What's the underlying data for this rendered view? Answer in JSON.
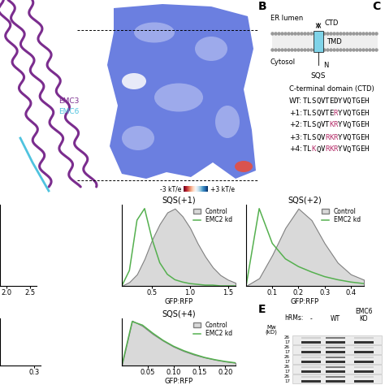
{
  "panel_A": {
    "labels": [
      {
        "text": "EMC3",
        "color": "#7b2d8e"
      },
      {
        "text": "EMC6",
        "color": "#4fc3df"
      }
    ],
    "color_scale": {
      "low": "-3 kT/e",
      "high": "+3 kT/e"
    }
  },
  "panel_B": {
    "letter": "B",
    "lumen": "ER lumen",
    "cytosol": "Cytosol",
    "ctd": "CTD",
    "tmd": "TMD",
    "n_term": "N",
    "protein": "SQS",
    "table_title": "C-terminal domain (CTD)",
    "sequences": [
      {
        "name": "WT:",
        "segments": [
          {
            "text": "TLSQVTEDYVQTGEH",
            "color": "#000000"
          }
        ]
      },
      {
        "name": "+1:",
        "segments": [
          {
            "text": "TLSQVTE",
            "color": "#000000"
          },
          {
            "text": "R",
            "color": "#b5306b"
          },
          {
            "text": "YVQTGEH",
            "color": "#000000"
          }
        ]
      },
      {
        "name": "+2:",
        "segments": [
          {
            "text": "TLSQVT",
            "color": "#000000"
          },
          {
            "text": "KR",
            "color": "#b5306b"
          },
          {
            "text": "YVQTGEH",
            "color": "#000000"
          }
        ]
      },
      {
        "name": "+3:",
        "segments": [
          {
            "text": "TLSQV",
            "color": "#000000"
          },
          {
            "text": "RKR",
            "color": "#b5306b"
          },
          {
            "text": "YVQTGEH",
            "color": "#000000"
          }
        ]
      },
      {
        "name": "+4:",
        "segments": [
          {
            "text": "TL",
            "color": "#000000"
          },
          {
            "text": "K",
            "color": "#b5306b"
          },
          {
            "text": "QV",
            "color": "#000000"
          },
          {
            "text": "RKR",
            "color": "#b5306b"
          },
          {
            "text": "YVQTGEH",
            "color": "#000000"
          }
        ]
      }
    ]
  },
  "panel_C": {
    "letter": "C"
  },
  "chart_data": [
    {
      "type": "line",
      "xlim": [
        1.86,
        2.64
      ],
      "xticks": [
        {
          "value": 2.0,
          "label": "2.0"
        },
        {
          "value": 2.5,
          "label": "2.5"
        }
      ],
      "ylim": [
        0,
        105
      ],
      "tick_labels": "x",
      "x": [],
      "series": []
    },
    {
      "type": "line",
      "title": "SQS(+1)",
      "x_label": "GFP:RFP",
      "xlim": [
        0.1,
        1.6
      ],
      "xticks": [
        0.5,
        {
          "value": 1.0,
          "label": "1.0"
        },
        1.5
      ],
      "ylim": [
        0,
        105
      ],
      "tick_labels": "x",
      "legend": "upper right",
      "x": [
        0.1,
        0.2,
        0.3,
        0.4,
        0.5,
        0.6,
        0.7,
        0.8,
        0.9,
        1.0,
        1.1,
        1.2,
        1.3,
        1.4,
        1.5,
        1.6
      ],
      "series": [
        {
          "name": "Control",
          "type": "area",
          "color": "#d9d9d9",
          "values": [
            0,
            5,
            15,
            35,
            60,
            80,
            95,
            100,
            90,
            75,
            55,
            38,
            24,
            14,
            8,
            4
          ]
        },
        {
          "name": "EMC2 kd",
          "type": "line",
          "color": "#55b04f",
          "values": [
            0,
            20,
            85,
            100,
            60,
            30,
            15,
            8,
            5,
            3,
            2,
            1,
            1,
            0,
            0,
            0
          ]
        }
      ]
    },
    {
      "type": "line",
      "title": "SQS(+2)",
      "x_label": "GFP:RFP",
      "xlim": [
        0.0,
        0.45
      ],
      "xticks": [
        0.1,
        0.2,
        0.3,
        0.4
      ],
      "ylim": [
        0,
        105
      ],
      "tick_labels": "x",
      "legend": "upper right",
      "x": [
        0.0,
        0.05,
        0.1,
        0.15,
        0.2,
        0.25,
        0.3,
        0.35,
        0.4,
        0.45
      ],
      "series": [
        {
          "name": "Control",
          "type": "area",
          "color": "#d9d9d9",
          "values": [
            0,
            10,
            40,
            75,
            100,
            85,
            55,
            30,
            15,
            8
          ]
        },
        {
          "name": "EMC2 kd",
          "type": "line",
          "color": "#55b04f",
          "values": [
            0,
            100,
            55,
            35,
            25,
            18,
            12,
            8,
            5,
            3
          ]
        }
      ]
    },
    {
      "type": "line",
      "xlim": [
        0.0,
        0.36
      ],
      "xticks": [
        0.3
      ],
      "ylim": [
        0,
        105
      ],
      "tick_labels": "x",
      "x": [],
      "series": []
    },
    {
      "type": "line",
      "title": "SQS(+4)",
      "x_label": "GFP:RFP",
      "xlim": [
        0.0,
        0.22
      ],
      "xticks": [
        0.05,
        {
          "value": 0.1,
          "label": "0.10"
        },
        0.15,
        {
          "value": 0.2,
          "label": "0.20"
        }
      ],
      "ylim": [
        0,
        105
      ],
      "tick_labels": "x",
      "legend": "upper right",
      "x": [
        0.0,
        0.02,
        0.04,
        0.06,
        0.08,
        0.1,
        0.12,
        0.14,
        0.16,
        0.18,
        0.2,
        0.22
      ],
      "series": [
        {
          "name": "Control",
          "type": "area",
          "color": "#d9d9d9",
          "values": [
            0,
            100,
            88,
            70,
            55,
            42,
            32,
            24,
            18,
            13,
            9,
            6
          ]
        },
        {
          "name": "EMC2 kd",
          "type": "line",
          "color": "#55b04f",
          "values": [
            0,
            98,
            90,
            72,
            56,
            43,
            33,
            25,
            18,
            13,
            9,
            6
          ]
        }
      ]
    }
  ],
  "panel_E": {
    "letter": "E",
    "sample_header": "hRMs:",
    "lanes": [
      "-",
      "WT",
      "EMC6\nKO"
    ],
    "mw_label": "Mw\n(kD)",
    "strips": [
      {
        "markers": [
          26,
          17
        ]
      },
      {
        "markers": [
          26,
          17
        ]
      },
      {
        "markers": [
          26,
          17
        ]
      },
      {
        "markers": [
          26,
          17
        ]
      },
      {
        "markers": [
          26,
          17
        ]
      }
    ]
  }
}
